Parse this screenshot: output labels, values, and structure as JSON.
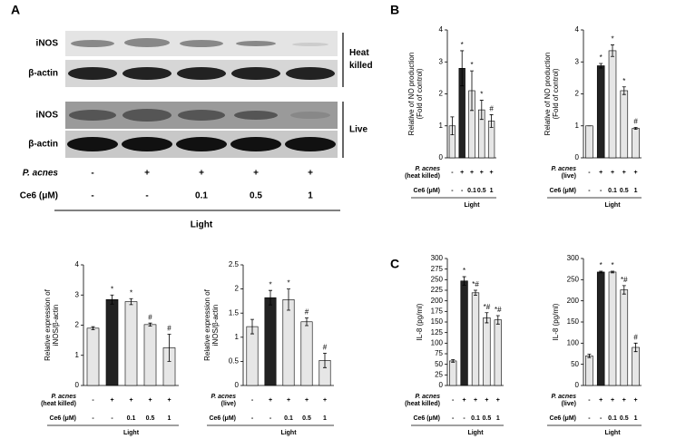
{
  "panel_labels": [
    "A",
    "B",
    "C"
  ],
  "blot": {
    "rows": [
      "iNOS",
      "β-actin",
      "iNOS",
      "β-actin"
    ],
    "groups": [
      "Heat killed",
      "Live"
    ],
    "treatments": [
      {
        "label": "P. acnes",
        "values": [
          "-",
          "+",
          "+",
          "+",
          "+"
        ]
      },
      {
        "label": "Ce6 (μM)",
        "values": [
          "-",
          "-",
          "0.1",
          "0.5",
          "1"
        ]
      }
    ],
    "condition": "Light"
  },
  "chart_data": [
    {
      "type": "bar",
      "ylabel": [
        "Relative expression of",
        "iNOS/β-actin"
      ],
      "values": [
        1.9,
        2.85,
        2.78,
        2.02,
        1.25
      ],
      "errors": [
        0.05,
        0.15,
        0.1,
        0.05,
        0.45
      ],
      "annotations": [
        null,
        "*",
        "*",
        "#",
        "#"
      ],
      "colors": [
        "#e6e6e6",
        "#222222",
        "#e6e6e6",
        "#e6e6e6",
        "#e6e6e6"
      ],
      "ylim": [
        0,
        4
      ],
      "yticks": [
        0,
        1,
        2,
        3,
        4
      ],
      "treatments": [
        {
          "label": [
            "P. acnes",
            "(heat killed)"
          ],
          "values": [
            "-",
            "+",
            "+",
            "+",
            "+"
          ]
        },
        {
          "label": [
            "Ce6 (μM)"
          ],
          "values": [
            "-",
            "-",
            "0.1",
            "0.5",
            "1"
          ]
        }
      ],
      "condition": "Light"
    },
    {
      "type": "bar",
      "ylabel": [
        "Relative expression of",
        "iNOS/β-actin"
      ],
      "values": [
        1.22,
        1.82,
        1.78,
        1.32,
        0.52
      ],
      "errors": [
        0.15,
        0.15,
        0.22,
        0.08,
        0.15
      ],
      "annotations": [
        null,
        "*",
        "*",
        "#",
        "#"
      ],
      "colors": [
        "#e6e6e6",
        "#222222",
        "#e6e6e6",
        "#e6e6e6",
        "#e6e6e6"
      ],
      "ylim": [
        0,
        2.5
      ],
      "yticks": [
        0,
        0.5,
        1,
        1.5,
        2,
        2.5
      ],
      "treatments": [
        {
          "label": [
            "P. acnes",
            "(live)"
          ],
          "values": [
            "-",
            "+",
            "+",
            "+",
            "+"
          ]
        },
        {
          "label": [
            "Ce6 (μM)"
          ],
          "values": [
            "-",
            "-",
            "0.1",
            "0.5",
            "1"
          ]
        }
      ],
      "condition": "Light"
    },
    {
      "type": "bar",
      "ylabel": [
        "Relative of NO production",
        "(Fold of control)"
      ],
      "values": [
        1.0,
        2.8,
        2.1,
        1.5,
        1.15
      ],
      "errors": [
        0.28,
        0.55,
        0.62,
        0.3,
        0.2
      ],
      "annotations": [
        null,
        "*",
        "*",
        "*",
        "#"
      ],
      "colors": [
        "#e6e6e6",
        "#222222",
        "#e6e6e6",
        "#e6e6e6",
        "#e6e6e6"
      ],
      "ylim": [
        0,
        4
      ],
      "yticks": [
        0,
        1,
        2,
        3,
        4
      ],
      "treatments": [
        {
          "label": [
            "P. acnes",
            "(heat killed)"
          ],
          "values": [
            "-",
            "+",
            "+",
            "+",
            "+"
          ]
        },
        {
          "label": [
            "Ce6 (μM)"
          ],
          "values": [
            "-",
            "-",
            "0.1",
            "0.5",
            "1"
          ]
        }
      ],
      "condition": "Light"
    },
    {
      "type": "bar",
      "ylabel": [
        "Relative of NO production",
        "(Fold of control)"
      ],
      "values": [
        1.0,
        2.88,
        3.35,
        2.1,
        0.92
      ],
      "errors": [
        0,
        0.07,
        0.18,
        0.12,
        0.03
      ],
      "annotations": [
        null,
        "*",
        "*",
        "*",
        "#"
      ],
      "colors": [
        "#e6e6e6",
        "#222222",
        "#e6e6e6",
        "#e6e6e6",
        "#e6e6e6"
      ],
      "ylim": [
        0,
        4
      ],
      "yticks": [
        0,
        1,
        2,
        3,
        4
      ],
      "treatments": [
        {
          "label": [
            "P. acnes",
            "(live)"
          ],
          "values": [
            "-",
            "+",
            "+",
            "+",
            "+"
          ]
        },
        {
          "label": [
            "Ce6 (μM)"
          ],
          "values": [
            "-",
            "-",
            "0.1",
            "0.5",
            "1"
          ]
        }
      ],
      "condition": "Light"
    },
    {
      "type": "bar",
      "ylabel": [
        "IL-8  (pg/ml)"
      ],
      "values": [
        58,
        247,
        219,
        160,
        155
      ],
      "errors": [
        3,
        10,
        6,
        12,
        10
      ],
      "annotations": [
        null,
        "*",
        "*#",
        "*#",
        "*#"
      ],
      "colors": [
        "#e6e6e6",
        "#222222",
        "#e6e6e6",
        "#e6e6e6",
        "#e6e6e6"
      ],
      "ylim": [
        0,
        300
      ],
      "yticks": [
        0,
        25,
        50,
        75,
        100,
        125,
        150,
        175,
        200,
        225,
        250,
        275,
        300
      ],
      "treatments": [
        {
          "label": [
            "P. acnes",
            "(heat killed)"
          ],
          "values": [
            "-",
            "+",
            "+",
            "+",
            "+"
          ]
        },
        {
          "label": [
            "Ce6 (μM)"
          ],
          "values": [
            "-",
            "-",
            "0.1",
            "0.5",
            "1"
          ]
        }
      ],
      "condition": "Light"
    },
    {
      "type": "bar",
      "ylabel": [
        "IL-8  (pg/ml)"
      ],
      "values": [
        70,
        268,
        268,
        226,
        90
      ],
      "errors": [
        4,
        2,
        2,
        10,
        10
      ],
      "annotations": [
        null,
        "*",
        "*",
        "*#",
        "#"
      ],
      "colors": [
        "#e6e6e6",
        "#222222",
        "#e6e6e6",
        "#e6e6e6",
        "#e6e6e6"
      ],
      "ylim": [
        0,
        300
      ],
      "yticks": [
        0,
        50,
        100,
        150,
        200,
        250,
        300
      ],
      "treatments": [
        {
          "label": [
            "P. acnes",
            "(live)"
          ],
          "values": [
            "-",
            "+",
            "+",
            "+",
            "+"
          ]
        },
        {
          "label": [
            "Ce6 (μM)"
          ],
          "values": [
            "-",
            "-",
            "0.1",
            "0.5",
            "1"
          ]
        }
      ],
      "condition": "Light"
    }
  ]
}
